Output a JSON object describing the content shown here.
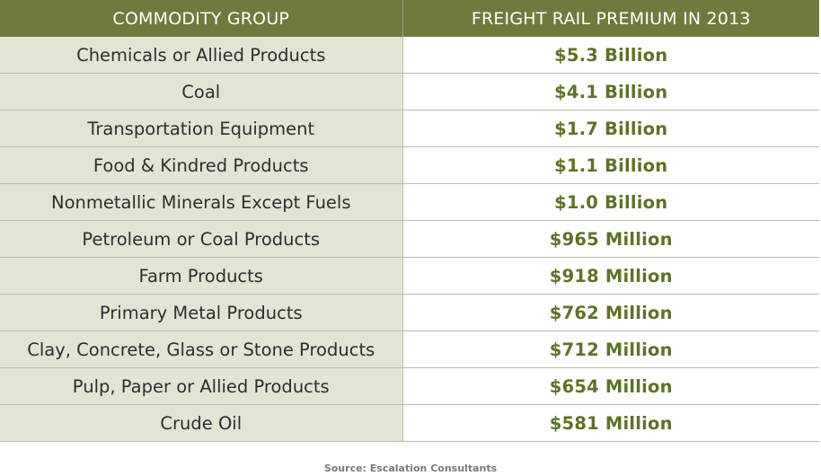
{
  "chart_data": {
    "type": "table",
    "columns": [
      "COMMODITY GROUP",
      "FREIGHT RAIL PREMIUM IN 2013"
    ],
    "rows": [
      {
        "group": "Chemicals or Allied Products",
        "premium": "$5.3 Billion"
      },
      {
        "group": "Coal",
        "premium": "$4.1 Billion"
      },
      {
        "group": "Transportation Equipment",
        "premium": "$1.7 Billion"
      },
      {
        "group": "Food & Kindred Products",
        "premium": "$1.1 Billion"
      },
      {
        "group": "Nonmetallic Minerals Except Fuels",
        "premium": "$1.0 Billion"
      },
      {
        "group": "Petroleum or Coal Products",
        "premium": "$965 Million"
      },
      {
        "group": "Farm Products",
        "premium": "$918 Million"
      },
      {
        "group": "Primary Metal Products",
        "premium": "$762 Million"
      },
      {
        "group": "Clay, Concrete, Glass or Stone Products",
        "premium": "$712 Million"
      },
      {
        "group": "Pulp, Paper or Allied Products",
        "premium": "$654 Million"
      },
      {
        "group": "Crude Oil",
        "premium": "$581 Million"
      }
    ],
    "source": "Source: Escalation Consultants"
  },
  "colors": {
    "header_bg": "#6d7c3c",
    "group_cell_bg": "#e2e5d4",
    "premium_text": "#5e7226"
  }
}
